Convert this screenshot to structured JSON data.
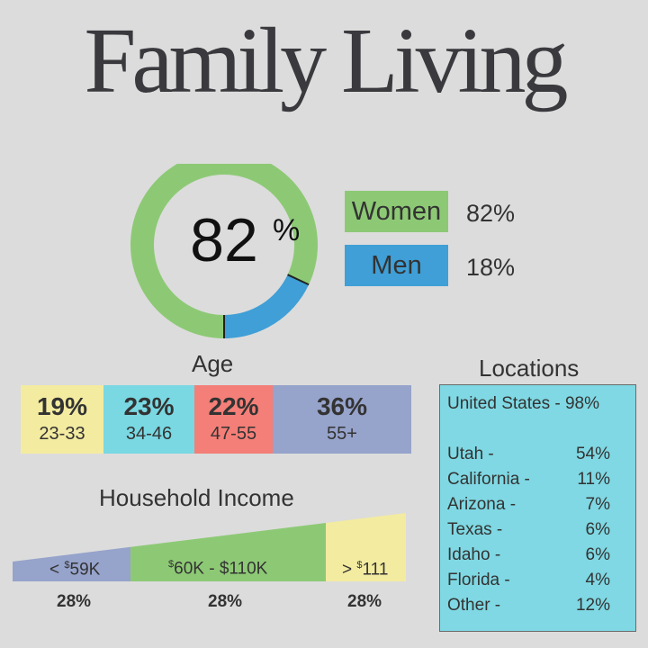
{
  "title": "Family Living",
  "gender": {
    "center_value": "82",
    "center_unit": "%",
    "women_label": "Women",
    "women_value": "82%",
    "men_label": "Men",
    "men_value": "18%",
    "women_color": "#8dc975",
    "men_color": "#3f9fd6"
  },
  "age": {
    "title": "Age",
    "segments": [
      {
        "pct": "19%",
        "range": "23-33",
        "color": "#f3eba0"
      },
      {
        "pct": "23%",
        "range": "34-46",
        "color": "#79d8e2"
      },
      {
        "pct": "22%",
        "range": "47-55",
        "color": "#f47f78"
      },
      {
        "pct": "36%",
        "range": "55+",
        "color": "#96a3cb"
      }
    ]
  },
  "income": {
    "title": "Household Income",
    "segments": [
      {
        "pre": "< ",
        "sup": "$",
        "main": "59K",
        "pct": "28%",
        "color": "#96a3cb"
      },
      {
        "pre": "",
        "sup": "$",
        "main": "60K - $110K",
        "pct": "28%",
        "color": "#8dc975"
      },
      {
        "pre": "> ",
        "sup": "$",
        "main": "111",
        "pct": "28%",
        "color": "#f3eba0"
      }
    ]
  },
  "locations": {
    "title": "Locations",
    "header": "United States - 98%",
    "rows": [
      {
        "name": "Utah -",
        "value": "54%"
      },
      {
        "name": "California -",
        "value": "11%"
      },
      {
        "name": "Arizona -",
        "value": "7%"
      },
      {
        "name": "Texas -",
        "value": "6%"
      },
      {
        "name": "Idaho -",
        "value": "6%"
      },
      {
        "name": "Florida -",
        "value": "4%"
      },
      {
        "name": "Other -",
        "value": "12%"
      }
    ]
  },
  "chart_data": [
    {
      "type": "pie",
      "categories": [
        "Women",
        "Men"
      ],
      "values": [
        82,
        18
      ]
    },
    {
      "type": "bar",
      "title": "Age",
      "categories": [
        "23-33",
        "34-46",
        "47-55",
        "55+"
      ],
      "values": [
        19,
        23,
        22,
        36
      ]
    },
    {
      "type": "bar",
      "title": "Household Income",
      "categories": [
        "< $59K",
        "$60K - $110K",
        "> $111"
      ],
      "values": [
        28,
        28,
        28
      ]
    },
    {
      "type": "table",
      "title": "Locations",
      "categories": [
        "Utah",
        "California",
        "Arizona",
        "Texas",
        "Idaho",
        "Florida",
        "Other"
      ],
      "values": [
        54,
        11,
        7,
        6,
        6,
        4,
        12
      ]
    }
  ]
}
